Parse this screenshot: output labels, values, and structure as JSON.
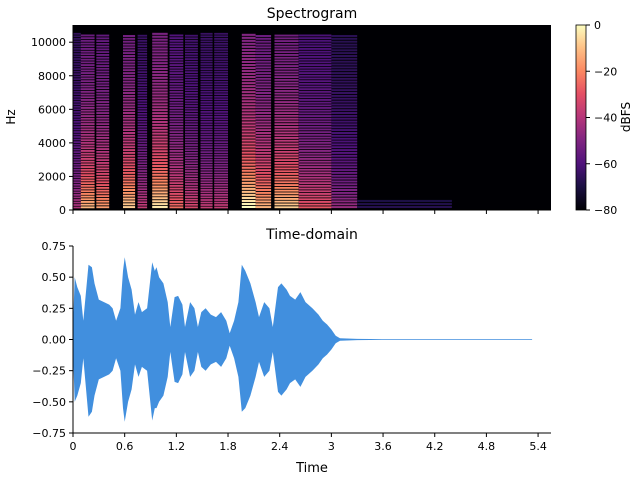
{
  "chart_data": [
    {
      "type": "heatmap",
      "title": "Spectrogram",
      "xlabel": "",
      "ylabel": "Hz",
      "xlim": [
        0,
        5.55
      ],
      "ylim": [
        0,
        11025
      ],
      "y_ticks": [
        0,
        2000,
        4000,
        6000,
        8000,
        10000
      ],
      "y_tick_labels": [
        "0",
        "2000",
        "4000",
        "6000",
        "8000",
        "10000"
      ],
      "x_ticks": [
        0,
        0.6,
        1.2,
        1.8,
        2.4,
        3.0,
        3.6,
        4.2,
        4.8,
        5.4
      ],
      "show_x_tick_labels": false,
      "colormap": "magma",
      "signal_duration": 5.33,
      "colorbar": {
        "label": "dBFS",
        "range": [
          -80,
          0
        ],
        "ticks": [
          0,
          -20,
          -40,
          -60,
          -80
        ],
        "tick_labels": [
          "0",
          "−20",
          "−40",
          "−60",
          "−80"
        ]
      },
      "spectral_bursts": [
        {
          "t_start": 0.0,
          "t_end": 0.09,
          "fundamental_hz": 150,
          "level": 0.45
        },
        {
          "t_start": 0.09,
          "t_end": 0.25,
          "fundamental_hz": 160,
          "level": 0.8
        },
        {
          "t_start": 0.27,
          "t_end": 0.42,
          "fundamental_hz": 165,
          "level": 0.75
        },
        {
          "t_start": 0.58,
          "t_end": 0.72,
          "fundamental_hz": 170,
          "level": 0.85
        },
        {
          "t_start": 0.75,
          "t_end": 0.86,
          "fundamental_hz": 155,
          "level": 0.5
        },
        {
          "t_start": 0.92,
          "t_end": 1.1,
          "fundamental_hz": 175,
          "level": 0.9
        },
        {
          "t_start": 1.12,
          "t_end": 1.28,
          "fundamental_hz": 160,
          "level": 0.65
        },
        {
          "t_start": 1.3,
          "t_end": 1.45,
          "fundamental_hz": 155,
          "level": 0.55
        },
        {
          "t_start": 1.48,
          "t_end": 1.62,
          "fundamental_hz": 150,
          "level": 0.5
        },
        {
          "t_start": 1.64,
          "t_end": 1.8,
          "fundamental_hz": 150,
          "level": 0.5
        },
        {
          "t_start": 1.96,
          "t_end": 2.12,
          "fundamental_hz": 180,
          "level": 0.95
        },
        {
          "t_start": 2.12,
          "t_end": 2.3,
          "fundamental_hz": 170,
          "level": 0.8
        },
        {
          "t_start": 2.34,
          "t_end": 2.62,
          "fundamental_hz": 165,
          "level": 0.85
        },
        {
          "t_start": 2.62,
          "t_end": 3.0,
          "fundamental_hz": 160,
          "level": 0.6
        },
        {
          "t_start": 3.0,
          "t_end": 3.3,
          "fundamental_hz": 170,
          "level": 0.4
        },
        {
          "t_start": 3.3,
          "t_end": 4.4,
          "fundamental_hz": 180,
          "level": 0.15
        }
      ]
    },
    {
      "type": "line",
      "title": "Time-domain",
      "xlabel": "Time",
      "ylabel": "",
      "xlim": [
        0,
        5.55
      ],
      "ylim": [
        -0.75,
        0.75
      ],
      "x_ticks": [
        0,
        0.6,
        1.2,
        1.8,
        2.4,
        3.0,
        3.6,
        4.2,
        4.8,
        5.4
      ],
      "x_tick_labels": [
        "0",
        "0.6",
        "1.2",
        "1.8",
        "2.4",
        "3",
        "3.6",
        "4.2",
        "4.8",
        "5.4"
      ],
      "y_ticks": [
        0.75,
        0.5,
        0.25,
        0.0,
        -0.25,
        -0.5,
        -0.75
      ],
      "y_tick_labels": [
        "0.75",
        "0.50",
        "0.25",
        "0.00",
        "−0.25",
        "−0.50",
        "−0.75"
      ],
      "line_color": "#418fde",
      "envelope_time": [
        0.0,
        0.02,
        0.05,
        0.09,
        0.12,
        0.18,
        0.22,
        0.25,
        0.3,
        0.36,
        0.42,
        0.46,
        0.5,
        0.55,
        0.58,
        0.6,
        0.64,
        0.68,
        0.72,
        0.76,
        0.8,
        0.86,
        0.92,
        0.95,
        0.97,
        1.0,
        1.05,
        1.1,
        1.13,
        1.18,
        1.22,
        1.27,
        1.3,
        1.36,
        1.41,
        1.45,
        1.49,
        1.54,
        1.6,
        1.66,
        1.72,
        1.78,
        1.82,
        1.87,
        1.92,
        1.96,
        2.0,
        2.06,
        2.12,
        2.16,
        2.22,
        2.28,
        2.32,
        2.38,
        2.42,
        2.48,
        2.52,
        2.58,
        2.64,
        2.7,
        2.78,
        2.85,
        2.9,
        2.95,
        3.0,
        3.05,
        3.1,
        3.3,
        3.6,
        5.33
      ],
      "envelope_top": [
        0.1,
        0.5,
        0.42,
        0.35,
        0.15,
        0.6,
        0.58,
        0.45,
        0.32,
        0.3,
        0.28,
        0.25,
        0.15,
        0.25,
        0.55,
        0.66,
        0.5,
        0.4,
        0.2,
        0.3,
        0.22,
        0.25,
        0.62,
        0.55,
        0.58,
        0.5,
        0.45,
        0.3,
        0.1,
        0.34,
        0.35,
        0.28,
        0.1,
        0.3,
        0.25,
        0.1,
        0.22,
        0.25,
        0.2,
        0.18,
        0.22,
        0.15,
        0.05,
        0.15,
        0.3,
        0.6,
        0.55,
        0.45,
        0.3,
        0.18,
        0.3,
        0.25,
        0.1,
        0.42,
        0.45,
        0.4,
        0.35,
        0.32,
        0.38,
        0.3,
        0.25,
        0.2,
        0.15,
        0.12,
        0.08,
        0.03,
        0.01,
        0.005,
        0.003,
        0.003
      ],
      "envelope_bottom": [
        -0.1,
        -0.5,
        -0.45,
        -0.35,
        -0.15,
        -0.62,
        -0.58,
        -0.45,
        -0.32,
        -0.3,
        -0.28,
        -0.25,
        -0.15,
        -0.25,
        -0.55,
        -0.66,
        -0.5,
        -0.4,
        -0.2,
        -0.3,
        -0.22,
        -0.25,
        -0.65,
        -0.55,
        -0.55,
        -0.5,
        -0.45,
        -0.3,
        -0.1,
        -0.34,
        -0.35,
        -0.28,
        -0.1,
        -0.3,
        -0.25,
        -0.1,
        -0.22,
        -0.25,
        -0.2,
        -0.18,
        -0.22,
        -0.15,
        -0.05,
        -0.15,
        -0.3,
        -0.58,
        -0.55,
        -0.45,
        -0.3,
        -0.18,
        -0.3,
        -0.25,
        -0.1,
        -0.42,
        -0.45,
        -0.4,
        -0.35,
        -0.32,
        -0.38,
        -0.3,
        -0.25,
        -0.2,
        -0.15,
        -0.12,
        -0.08,
        -0.03,
        -0.01,
        -0.005,
        -0.003,
        -0.003
      ]
    }
  ]
}
